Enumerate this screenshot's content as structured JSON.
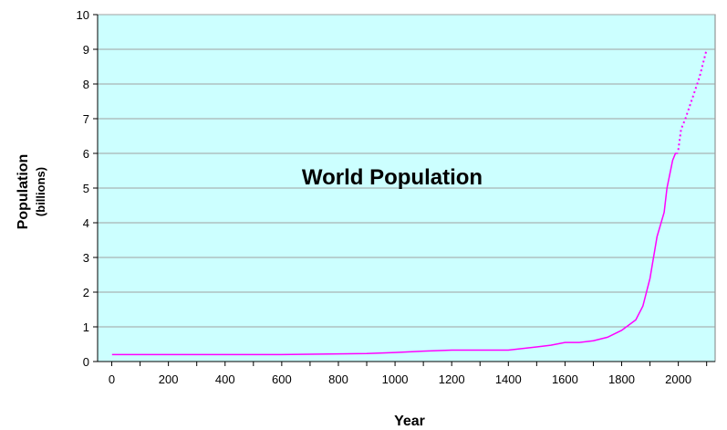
{
  "chart_data": {
    "type": "line",
    "title": "World Population",
    "xlabel": "Year",
    "ylabel": "Population",
    "ylabel_sub": "(billions)",
    "xlim": [
      -50,
      2130
    ],
    "ylim": [
      0,
      10
    ],
    "x_ticks": [
      0,
      200,
      400,
      600,
      800,
      1000,
      1200,
      1400,
      1600,
      1800,
      2000
    ],
    "y_ticks": [
      0,
      1,
      2,
      3,
      4,
      5,
      6,
      7,
      8,
      9,
      10
    ],
    "grid": "horizontal",
    "plot_background": "#ccffff",
    "series": [
      {
        "style": "solid",
        "color": "#ff00ff",
        "x": [
          1,
          200,
          400,
          600,
          700,
          800,
          900,
          1000,
          1100,
          1200,
          1300,
          1400,
          1500,
          1550,
          1600,
          1650,
          1700,
          1750,
          1800,
          1850,
          1875,
          1900,
          1925,
          1950,
          1960,
          1970,
          1980,
          1990,
          1999
        ],
        "values": [
          0.2,
          0.2,
          0.2,
          0.2,
          0.21,
          0.22,
          0.23,
          0.26,
          0.3,
          0.33,
          0.33,
          0.33,
          0.42,
          0.47,
          0.55,
          0.55,
          0.6,
          0.7,
          0.9,
          1.2,
          1.6,
          2.4,
          3.6,
          4.3,
          5.0,
          5.4,
          5.8,
          6.0,
          6.0
        ]
      },
      {
        "style": "dotted",
        "color": "#ff00ff",
        "x": [
          2000,
          2010,
          2025,
          2050,
          2075,
          2100
        ],
        "values": [
          6.1,
          6.7,
          7.0,
          7.6,
          8.2,
          9.0
        ]
      }
    ]
  }
}
